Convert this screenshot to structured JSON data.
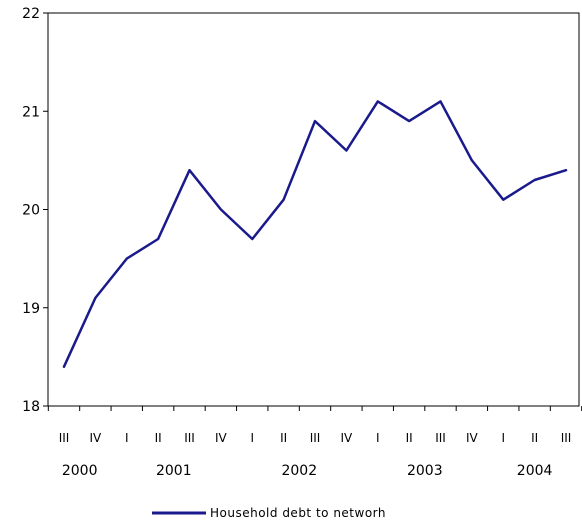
{
  "chart_data": {
    "type": "line",
    "title": "",
    "xlabel": "",
    "ylabel": "",
    "ylim": [
      18,
      22
    ],
    "yticks": [
      18,
      19,
      20,
      21,
      22
    ],
    "grid": false,
    "legend_position": "bottom",
    "categories": [
      "2000 III",
      "2000 IV",
      "2001 I",
      "2001 II",
      "2001 III",
      "2001 IV",
      "2002 I",
      "2002 II",
      "2002 III",
      "2002 IV",
      "2003 I",
      "2003 II",
      "2003 III",
      "2003 IV",
      "2004 I",
      "2004 II",
      "2004 III"
    ],
    "quarter_labels": [
      "III",
      "IV",
      "I",
      "II",
      "III",
      "IV",
      "I",
      "II",
      "III",
      "IV",
      "I",
      "II",
      "III",
      "IV",
      "I",
      "II",
      "III"
    ],
    "year_labels": [
      "2000",
      "2001",
      "2002",
      "2003",
      "2004"
    ],
    "series": [
      {
        "name": "Household debt to networh",
        "color": "#1a1a8c",
        "values": [
          18.4,
          19.1,
          19.5,
          19.7,
          20.4,
          20.0,
          19.7,
          20.1,
          20.9,
          20.6,
          21.1,
          20.9,
          21.1,
          20.5,
          20.1,
          20.3,
          20.4
        ]
      }
    ]
  }
}
